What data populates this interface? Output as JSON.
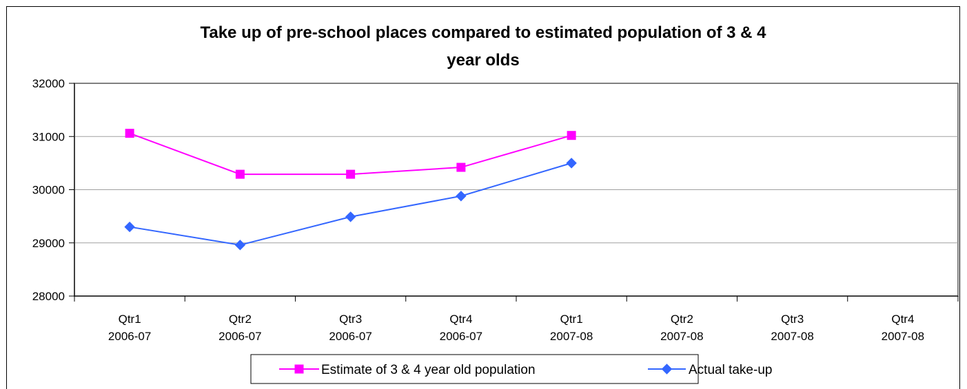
{
  "chart_data": {
    "type": "line",
    "title": "Take up of pre-school places compared to estimated population of 3 & 4 year olds",
    "title_lines": [
      "Take up of pre-school places compared to estimated population of 3 & 4",
      "year olds"
    ],
    "xlabel": "",
    "ylabel": "",
    "ylim": [
      28000,
      32000
    ],
    "yticks": [
      "28000",
      "29000",
      "30000",
      "31000",
      "32000"
    ],
    "grid": true,
    "legend_position": "bottom",
    "categories": [
      [
        "Qtr1",
        "2006-07"
      ],
      [
        "Qtr2",
        "2006-07"
      ],
      [
        "Qtr3",
        "2006-07"
      ],
      [
        "Qtr4",
        "2006-07"
      ],
      [
        "Qtr1",
        "2007-08"
      ],
      [
        "Qtr2",
        "2007-08"
      ],
      [
        "Qtr3",
        "2007-08"
      ],
      [
        "Qtr4",
        "2007-08"
      ]
    ],
    "series": [
      {
        "name": "Estimate of 3 & 4 year old population",
        "color": "#FF00FF",
        "marker": "square",
        "values": [
          31060,
          30290,
          30290,
          30420,
          31020,
          null,
          null,
          null
        ]
      },
      {
        "name": "Actual take-up",
        "color": "#3366FF",
        "marker": "diamond",
        "values": [
          29300,
          28960,
          29490,
          29880,
          30500,
          null,
          null,
          null
        ]
      }
    ]
  }
}
